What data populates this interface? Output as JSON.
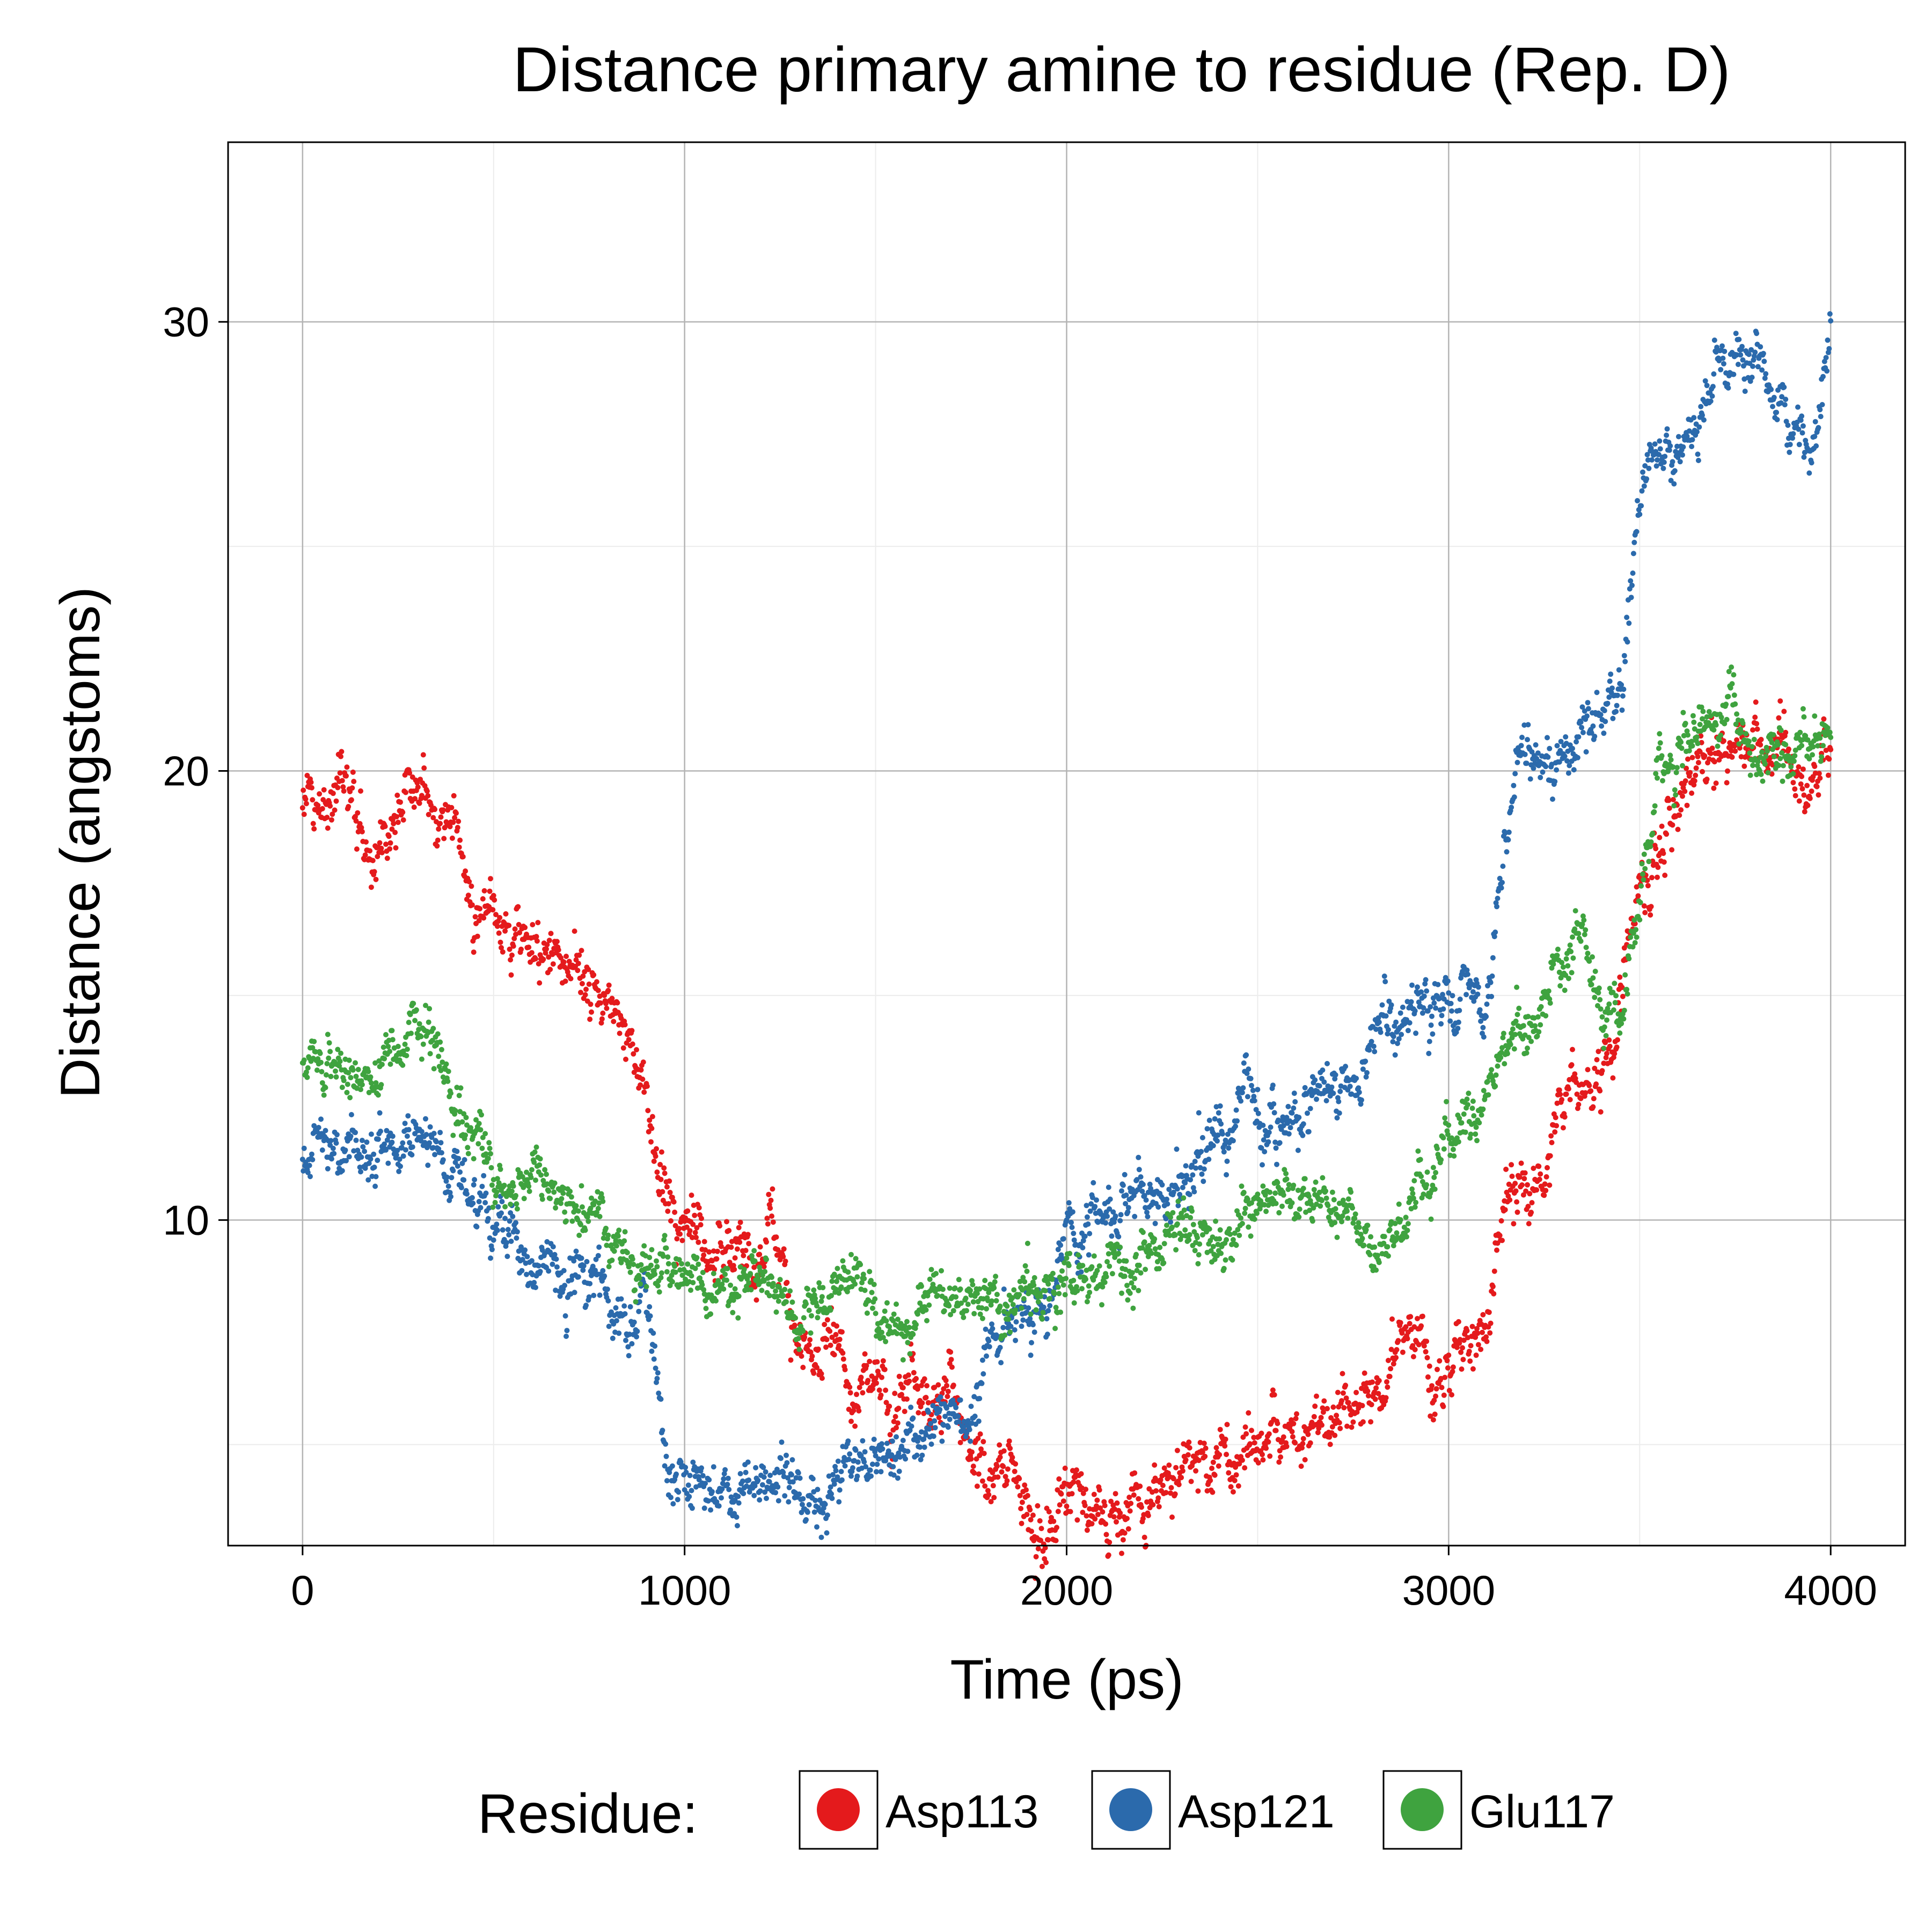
{
  "chart_data": {
    "type": "scatter",
    "title": "Distance primary amine to residue (Rep. D)",
    "xlabel": "Time (ps)",
    "ylabel": "Distance (angstoms)",
    "xlim": [
      -195,
      4195
    ],
    "ylim": [
      2.75,
      34.0
    ],
    "xticks": [
      0,
      1000,
      2000,
      3000,
      4000
    ],
    "yticks": [
      10,
      20,
      30
    ],
    "grid": true,
    "legend": {
      "title": "Residue:",
      "placement": "bottom"
    },
    "series": [
      {
        "name": "Asp113",
        "color": "#E41A1C",
        "trend": [
          [
            0,
            19.3
          ],
          [
            100,
            19.6
          ],
          [
            200,
            18.9
          ],
          [
            300,
            19.9
          ],
          [
            400,
            18.8
          ],
          [
            450,
            17.3
          ],
          [
            550,
            16.3
          ],
          [
            650,
            15.9
          ],
          [
            750,
            15.3
          ],
          [
            850,
            14.5
          ],
          [
            900,
            12.5
          ],
          [
            950,
            10.3
          ],
          [
            1000,
            9.8
          ],
          [
            1150,
            9.6
          ],
          [
            1250,
            9.6
          ],
          [
            1300,
            7.1
          ],
          [
            1400,
            6.7
          ],
          [
            1500,
            6.3
          ],
          [
            1600,
            6.2
          ],
          [
            1700,
            5.9
          ],
          [
            1750,
            5.1
          ],
          [
            1800,
            3.9
          ],
          [
            1900,
            3.8
          ],
          [
            2000,
            3.8
          ],
          [
            2100,
            3.9
          ],
          [
            2300,
            3.9
          ],
          [
            2400,
            4.6
          ],
          [
            2500,
            5.6
          ],
          [
            2600,
            5.8
          ],
          [
            2750,
            5.8
          ],
          [
            2850,
            6.9
          ],
          [
            2950,
            7.0
          ],
          [
            3050,
            7.2
          ],
          [
            3100,
            7.6
          ],
          [
            3150,
            10.5
          ],
          [
            3200,
            10.8
          ],
          [
            3300,
            12.5
          ],
          [
            3400,
            13.0
          ],
          [
            3450,
            14.5
          ],
          [
            3500,
            17.5
          ],
          [
            3600,
            19.3
          ],
          [
            3700,
            20.5
          ],
          [
            3800,
            20.5
          ],
          [
            3900,
            20.3
          ],
          [
            3950,
            19.6
          ],
          [
            4000,
            21.0
          ]
        ],
        "spread": 0.7
      },
      {
        "name": "Asp121",
        "color": "#2B6AAC",
        "trend": [
          [
            0,
            11.5
          ],
          [
            100,
            11.8
          ],
          [
            200,
            11.5
          ],
          [
            300,
            12.2
          ],
          [
            400,
            11.3
          ],
          [
            500,
            10.0
          ],
          [
            600,
            9.0
          ],
          [
            700,
            8.8
          ],
          [
            800,
            8.3
          ],
          [
            900,
            7.3
          ],
          [
            930,
            6.0
          ],
          [
            960,
            4.1
          ],
          [
            1100,
            4.0
          ],
          [
            1300,
            4.1
          ],
          [
            1500,
            4.3
          ],
          [
            1550,
            4.5
          ],
          [
            1600,
            5.6
          ],
          [
            1700,
            6.0
          ],
          [
            1750,
            5.8
          ],
          [
            1800,
            7.5
          ],
          [
            1900,
            8.0
          ],
          [
            1950,
            7.8
          ],
          [
            2000,
            9.5
          ],
          [
            2100,
            10.1
          ],
          [
            2200,
            10.5
          ],
          [
            2350,
            11.3
          ],
          [
            2450,
            12.4
          ],
          [
            2550,
            12.1
          ],
          [
            2650,
            12.6
          ],
          [
            2750,
            13.0
          ],
          [
            2800,
            14.0
          ],
          [
            2900,
            14.6
          ],
          [
            3000,
            14.6
          ],
          [
            3100,
            15.1
          ],
          [
            3150,
            18.5
          ],
          [
            3200,
            19.7
          ],
          [
            3300,
            20.4
          ],
          [
            3400,
            21.0
          ],
          [
            3450,
            22.0
          ],
          [
            3500,
            25.5
          ],
          [
            3550,
            27.3
          ],
          [
            3650,
            27.4
          ],
          [
            3700,
            29.0
          ],
          [
            3800,
            29.3
          ],
          [
            3850,
            28.5
          ],
          [
            3900,
            27.6
          ],
          [
            3950,
            27.5
          ],
          [
            4000,
            30.0
          ]
        ],
        "spread": 0.65
      },
      {
        "name": "Glu117",
        "color": "#3FA33F",
        "trend": [
          [
            0,
            13.5
          ],
          [
            100,
            13.4
          ],
          [
            200,
            13.1
          ],
          [
            300,
            14.0
          ],
          [
            400,
            12.5
          ],
          [
            500,
            11.0
          ],
          [
            600,
            10.8
          ],
          [
            700,
            10.5
          ],
          [
            800,
            9.8
          ],
          [
            900,
            8.8
          ],
          [
            1000,
            8.3
          ],
          [
            1100,
            8.3
          ],
          [
            1200,
            8.6
          ],
          [
            1300,
            8.2
          ],
          [
            1400,
            8.9
          ],
          [
            1500,
            8.2
          ],
          [
            1600,
            8.0
          ],
          [
            1700,
            8.0
          ],
          [
            1800,
            8.3
          ],
          [
            1900,
            8.4
          ],
          [
            2000,
            8.5
          ],
          [
            2100,
            8.8
          ],
          [
            2200,
            9.3
          ],
          [
            2300,
            9.6
          ],
          [
            2400,
            9.9
          ],
          [
            2500,
            10.3
          ],
          [
            2600,
            10.2
          ],
          [
            2700,
            10.3
          ],
          [
            2800,
            9.6
          ],
          [
            2900,
            10.8
          ],
          [
            3000,
            11.6
          ],
          [
            3100,
            12.6
          ],
          [
            3150,
            14.0
          ],
          [
            3200,
            13.8
          ],
          [
            3300,
            15.5
          ],
          [
            3350,
            16.4
          ],
          [
            3400,
            15.0
          ],
          [
            3450,
            14.7
          ],
          [
            3500,
            17.0
          ],
          [
            3550,
            19.8
          ],
          [
            3600,
            20.5
          ],
          [
            3700,
            20.9
          ],
          [
            3800,
            20.6
          ],
          [
            3900,
            20.4
          ],
          [
            4000,
            21.2
          ]
        ],
        "spread": 0.6
      }
    ]
  }
}
